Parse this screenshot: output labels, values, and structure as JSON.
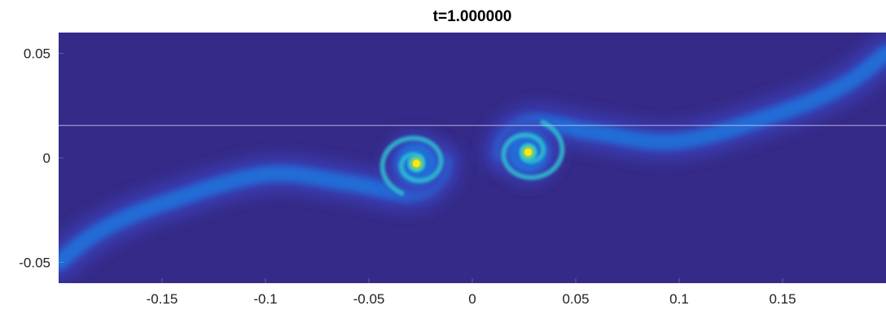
{
  "chart_data": {
    "type": "heatmap",
    "title": "t=1.000000",
    "xlabel": "",
    "ylabel": "",
    "xlim": [
      -0.2,
      0.2
    ],
    "ylim": [
      -0.06,
      0.06
    ],
    "x_ticks": [
      -0.15,
      -0.1,
      -0.05,
      0,
      0.05,
      0.1,
      0.15
    ],
    "x_tick_labels": [
      "-0.15",
      "-0.1",
      "-0.05",
      "0",
      "0.05",
      "0.1",
      "0.15"
    ],
    "y_ticks": [
      0.05,
      0,
      -0.05
    ],
    "y_tick_labels": [
      "0.05",
      "0",
      "-0.05"
    ],
    "grid": false,
    "colormap": "parula",
    "colors": {
      "background": "#352a87",
      "low": "#3a3fb8",
      "mid": "#1e78e0",
      "high": "#2fbfd0",
      "peak": "#f9e81e"
    },
    "reference_line_y": 0.0155,
    "vortices": [
      {
        "name": "left",
        "center": [
          -0.027,
          -0.0027
        ],
        "rotation": "ccw"
      },
      {
        "name": "right",
        "center": [
          0.027,
          0.0027
        ],
        "rotation": "ccw"
      }
    ],
    "filaments": [
      {
        "name": "left-tail",
        "points": [
          [
            -0.2,
            -0.05
          ],
          [
            -0.18,
            -0.035
          ],
          [
            -0.15,
            -0.022
          ],
          [
            -0.1,
            -0.008
          ],
          [
            -0.06,
            -0.012
          ],
          [
            -0.03,
            -0.017
          ],
          [
            -0.017,
            -0.01
          ],
          [
            -0.014,
            -0.002
          ]
        ]
      },
      {
        "name": "right-tail",
        "points": [
          [
            0.2,
            0.05
          ],
          [
            0.18,
            0.035
          ],
          [
            0.15,
            0.022
          ],
          [
            0.1,
            0.008
          ],
          [
            0.06,
            0.012
          ],
          [
            0.03,
            0.017
          ],
          [
            0.017,
            0.01
          ],
          [
            0.014,
            0.002
          ]
        ]
      }
    ]
  }
}
